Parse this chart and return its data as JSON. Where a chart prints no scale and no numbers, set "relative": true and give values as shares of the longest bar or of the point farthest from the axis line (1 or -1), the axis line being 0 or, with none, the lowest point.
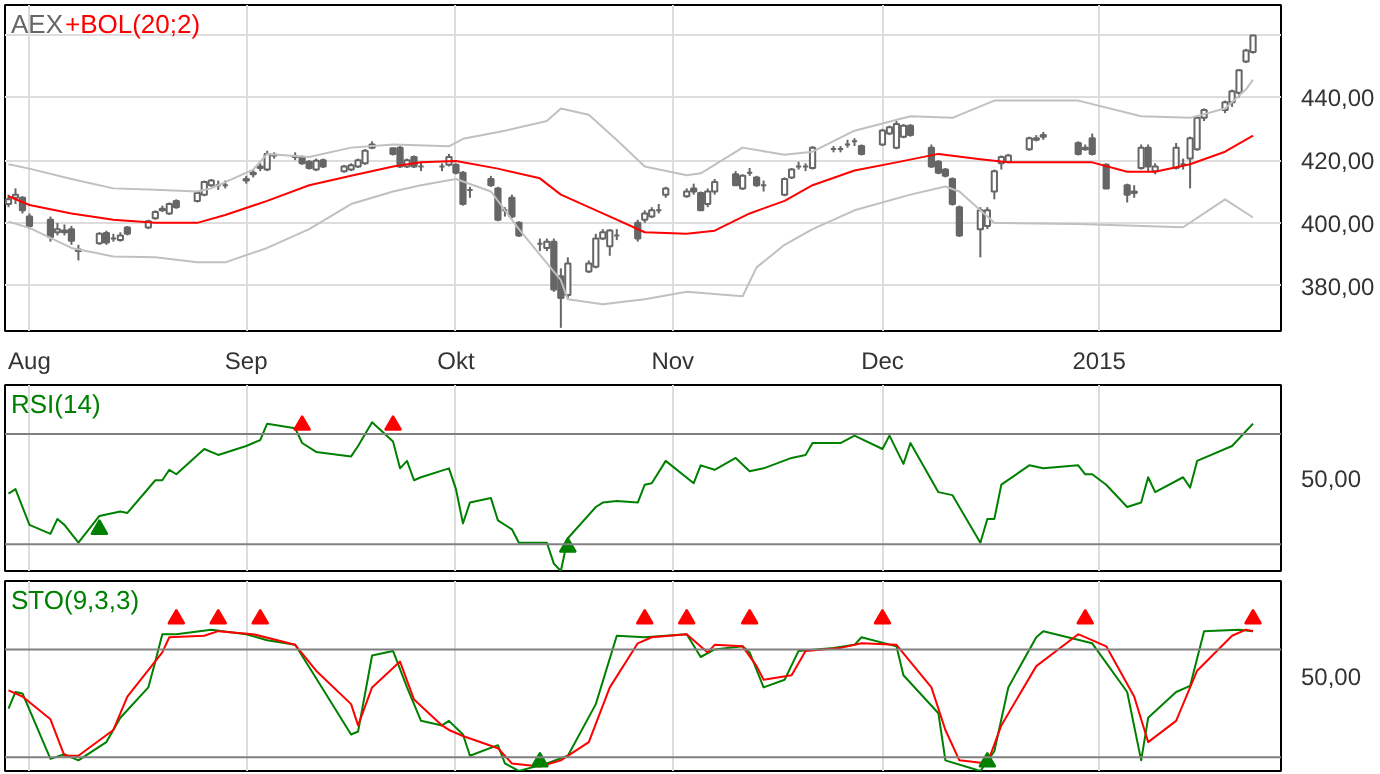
{
  "chart_data": [
    {
      "type": "candlestick",
      "legend": "top left",
      "grid": true,
      "x": [
        "2014-07-29",
        "2014-07-30",
        "2014-07-31",
        "2014-08-01",
        "2014-08-04",
        "2014-08-05",
        "2014-08-06",
        "2014-08-07",
        "2014-08-08",
        "2014-08-11",
        "2014-08-12",
        "2014-08-13",
        "2014-08-14",
        "2014-08-15",
        "2014-08-18",
        "2014-08-19",
        "2014-08-20",
        "2014-08-21",
        "2014-08-22",
        "2014-08-25",
        "2014-08-26",
        "2014-08-27",
        "2014-08-28",
        "2014-08-29",
        "2014-09-01",
        "2014-09-02",
        "2014-09-03",
        "2014-09-04",
        "2014-09-05",
        "2014-09-08",
        "2014-09-09",
        "2014-09-10",
        "2014-09-11",
        "2014-09-12",
        "2014-09-15",
        "2014-09-16",
        "2014-09-17",
        "2014-09-18",
        "2014-09-19",
        "2014-09-22",
        "2014-09-23",
        "2014-09-24",
        "2014-09-25",
        "2014-09-26",
        "2014-09-29",
        "2014-09-30",
        "2014-10-01",
        "2014-10-02",
        "2014-10-03",
        "2014-10-06",
        "2014-10-07",
        "2014-10-08",
        "2014-10-09",
        "2014-10-10",
        "2014-10-13",
        "2014-10-14",
        "2014-10-15",
        "2014-10-16",
        "2014-10-17",
        "2014-10-20",
        "2014-10-21",
        "2014-10-22",
        "2014-10-23",
        "2014-10-24",
        "2014-10-27",
        "2014-10-28",
        "2014-10-29",
        "2014-10-30",
        "2014-10-31",
        "2014-11-03",
        "2014-11-04",
        "2014-11-05",
        "2014-11-06",
        "2014-11-07",
        "2014-11-10",
        "2014-11-11",
        "2014-11-12",
        "2014-11-13",
        "2014-11-14",
        "2014-11-17",
        "2014-11-18",
        "2014-11-19",
        "2014-11-20",
        "2014-11-21",
        "2014-11-24",
        "2014-11-25",
        "2014-11-26",
        "2014-11-27",
        "2014-11-28",
        "2014-12-01",
        "2014-12-02",
        "2014-12-03",
        "2014-12-04",
        "2014-12-05",
        "2014-12-08",
        "2014-12-09",
        "2014-12-10",
        "2014-12-11",
        "2014-12-12",
        "2014-12-15",
        "2014-12-16",
        "2014-12-17",
        "2014-12-18",
        "2014-12-19",
        "2014-12-22",
        "2014-12-23",
        "2014-12-24",
        "2014-12-29",
        "2014-12-30",
        "2014-12-31",
        "2015-01-02",
        "2015-01-05",
        "2015-01-06",
        "2015-01-07",
        "2015-01-08",
        "2015-01-09",
        "2015-01-12",
        "2015-01-13",
        "2015-01-14",
        "2015-01-15",
        "2015-01-16",
        "2015-01-19",
        "2015-01-20",
        "2015-01-21",
        "2015-01-22",
        "2015-01-23"
      ],
      "series": [
        {
          "name": "AEX",
          "type": "candlestick",
          "color": "#666666",
          "ohlc": [
            [
              406,
              409,
              405,
              407.5
            ],
            [
              408,
              411,
              406,
              409
            ],
            [
              408,
              408.5,
              403,
              404
            ],
            [
              402,
              403,
              398,
              399
            ],
            [
              401,
              402,
              394,
              395.5
            ],
            [
              397,
              400,
              396,
              398
            ],
            [
              397,
              399.5,
              396,
              397.6
            ],
            [
              398,
              399,
              393,
              394.3
            ],
            [
              391.5,
              393,
              388,
              391
            ],
            [
              393.5,
              397,
              393,
              396.5
            ],
            [
              396.8,
              397.5,
              393,
              393.7
            ],
            [
              395,
              396.5,
              394,
              395
            ],
            [
              394.5,
              397,
              394,
              396
            ],
            [
              398.5,
              399,
              396,
              396.5
            ],
            [
              398.5,
              401,
              398,
              400.5
            ],
            [
              401.5,
              404,
              401,
              403.5
            ],
            [
              404,
              405.5,
              403.5,
              404.5
            ],
            [
              403,
              406.5,
              402.5,
              406
            ],
            [
              407,
              407.5,
              404.5,
              405
            ],
            [
              407,
              410,
              406.5,
              409.5
            ],
            [
              409,
              413.5,
              408.5,
              413
            ],
            [
              412,
              414,
              411.5,
              413.5
            ],
            [
              412,
              413.5,
              410.5,
              412
            ],
            [
              412,
              413.5,
              411,
              412
            ],
            [
              413.5,
              415,
              412.5,
              414
            ],
            [
              415.5,
              417,
              414.5,
              416
            ],
            [
              417.5,
              419,
              416.5,
              418
            ],
            [
              417,
              423,
              416.5,
              422
            ],
            [
              421.5,
              422.5,
              420.5,
              421.7
            ],
            [
              421,
              422.5,
              420,
              421.3
            ],
            [
              421,
              421.5,
              418.5,
              419
            ],
            [
              419.5,
              420,
              417,
              417.5
            ],
            [
              417,
              420.5,
              416.5,
              419.8
            ],
            [
              420,
              420.5,
              417.5,
              418
            ],
            [
              416.5,
              418.5,
              416,
              418
            ],
            [
              417,
              419,
              416.5,
              418.4
            ],
            [
              418,
              420.5,
              417.5,
              420
            ],
            [
              419,
              423.5,
              418.5,
              423
            ],
            [
              424,
              426,
              423.5,
              425
            ],
            [
              423.8,
              424,
              421.5,
              422
            ],
            [
              424,
              424.5,
              417.5,
              418
            ],
            [
              418,
              420.5,
              417.5,
              420
            ],
            [
              421,
              421.5,
              417.5,
              418
            ],
            [
              418,
              419.5,
              416.5,
              418
            ],
            [
              418,
              419,
              416.5,
              418
            ],
            [
              418.5,
              422,
              418,
              421
            ],
            [
              418.5,
              419,
              415.5,
              416
            ],
            [
              416,
              416.5,
              405.5,
              406
            ],
            [
              410.5,
              411.5,
              408,
              410.5
            ],
            [
              414,
              415,
              411.5,
              412
            ],
            [
              411,
              411.5,
              400.5,
              401
            ],
            [
              404,
              405,
              402,
              404
            ],
            [
              408,
              409,
              401.5,
              402
            ],
            [
              400,
              400.5,
              395.5,
              396
            ],
            [
              393.3,
              395,
              391,
              393.3
            ],
            [
              392,
              395,
              391,
              394
            ],
            [
              394,
              395,
              378,
              378.7
            ],
            [
              383,
              385.5,
              366.5,
              376
            ],
            [
              377,
              389,
              376,
              387
            ],
            [
              384.5,
              388,
              384,
              387
            ],
            [
              386,
              396.5,
              385.5,
              395
            ],
            [
              395,
              398,
              394.5,
              397
            ],
            [
              392.5,
              398,
              389.5,
              397.6
            ],
            [
              396,
              398,
              394.5,
              396
            ],
            [
              400,
              401,
              394,
              395
            ],
            [
              401,
              404,
              400,
              403
            ],
            [
              402,
              405,
              401.5,
              404
            ],
            [
              404,
              406,
              403,
              404
            ],
            [
              409,
              411.5,
              408,
              411
            ],
            [
              408.5,
              411,
              408,
              410
            ],
            [
              411,
              412.5,
              409,
              410
            ],
            [
              409.5,
              410,
              404,
              404
            ],
            [
              406,
              411,
              405,
              410
            ],
            [
              410,
              414,
              409,
              413
            ],
            [
              415.5,
              416.5,
              412,
              412
            ],
            [
              411,
              415.5,
              410.5,
              415
            ],
            [
              416,
              417.5,
              415,
              416
            ],
            [
              414.5,
              415,
              411.5,
              412
            ],
            [
              412,
              413.5,
              410,
              412
            ],
            [
              409,
              414.5,
              408.5,
              414
            ],
            [
              414.5,
              417.5,
              414,
              417
            ],
            [
              418,
              419.5,
              417,
              418
            ],
            [
              418,
              419,
              416.5,
              418
            ],
            [
              417.5,
              424.5,
              417,
              424
            ],
            [
              423.6,
              424.5,
              422.5,
              423.6
            ],
            [
              423.6,
              424.5,
              422.5,
              423.6
            ],
            [
              425,
              426.5,
              424,
              425
            ],
            [
              426,
              427,
              424.5,
              426
            ],
            [
              424.5,
              425,
              421.5,
              422
            ],
            [
              425,
              430,
              424.5,
              429.5
            ],
            [
              428.5,
              431,
              428,
              430.5
            ],
            [
              424,
              432.5,
              423.5,
              431.5
            ],
            [
              427.5,
              431.5,
              427,
              431
            ],
            [
              431,
              431.5,
              427.5,
              428
            ],
            [
              424,
              425,
              417.5,
              418
            ],
            [
              419.5,
              420,
              415.5,
              416
            ],
            [
              417,
              417.5,
              414.5,
              415
            ],
            [
              414,
              414.5,
              405.5,
              406
            ],
            [
              405,
              405.5,
              395.5,
              396
            ],
            [
              398,
              405,
              389,
              404
            ],
            [
              399,
              405,
              398,
              404
            ],
            [
              410,
              417,
              407.5,
              416.5
            ],
            [
              419,
              421.5,
              417,
              421
            ],
            [
              419.5,
              422,
              419,
              421.5
            ],
            [
              423.5,
              427.5,
              423,
              427
            ],
            [
              426.5,
              428,
              426,
              427
            ],
            [
              427.5,
              429,
              426.5,
              428
            ],
            [
              425.5,
              426,
              421.5,
              422
            ],
            [
              423.5,
              425,
              423,
              424
            ],
            [
              427,
              428.5,
              421.5,
              422
            ],
            [
              418.5,
              419,
              411,
              411
            ],
            [
              412,
              412.5,
              406.5,
              409
            ],
            [
              409.5,
              412,
              408,
              410
            ],
            [
              417.5,
              425,
              417,
              424
            ],
            [
              424,
              425,
              416.5,
              418
            ],
            [
              416.5,
              419,
              415.5,
              418
            ],
            [
              417.5,
              425.5,
              417,
              424
            ],
            [
              418.7,
              420.5,
              417,
              418.7
            ],
            [
              420.5,
              427.5,
              411,
              427
            ],
            [
              423.5,
              434,
              423,
              433.5
            ],
            [
              433.5,
              436.5,
              432.5,
              436
            ],
            [
              436,
              439,
              435,
              438.5
            ],
            [
              438.5,
              442.5,
              437,
              442
            ],
            [
              441.5,
              449,
              440,
              448.7
            ],
            [
              451.5,
              455.5,
              451,
              455
            ],
            [
              454.5,
              460,
              454,
              459.8
            ]
          ]
        },
        {
          "name": "+BOL(20;2)",
          "type": "line",
          "color": "#ff0000",
          "x": [
            "2014-07-29",
            "2014-08-01",
            "2014-08-07",
            "2014-08-13",
            "2014-08-19",
            "2014-08-25",
            "2014-08-29",
            "2014-09-04",
            "2014-09-10",
            "2014-09-16",
            "2014-09-22",
            "2014-09-26",
            "2014-10-01",
            "2014-10-07",
            "2014-10-13",
            "2014-10-16",
            "2014-10-22",
            "2014-10-28",
            "2014-11-03",
            "2014-11-07",
            "2014-11-12",
            "2014-11-17",
            "2014-11-21",
            "2014-11-27",
            "2014-12-03",
            "2014-12-09",
            "2014-12-15",
            "2014-12-19",
            "2014-12-31",
            "2015-01-05",
            "2015-01-09",
            "2015-01-14",
            "2015-01-19",
            "2015-01-23"
          ],
          "values": [
            408.5,
            405.7,
            403,
            401,
            400,
            400,
            402.5,
            407,
            412,
            415,
            418,
            419.3,
            419.7,
            417.3,
            414.2,
            409,
            403,
            397,
            396.5,
            397.5,
            403,
            407,
            412,
            416.7,
            419.3,
            422,
            420.3,
            419.3,
            419.3,
            416.3,
            416.3,
            418.7,
            422.7,
            427.8
          ]
        },
        {
          "type": "line",
          "color": "#c0c0c0",
          "x": [
            "2014-07-29",
            "2014-08-01",
            "2014-08-07",
            "2014-08-13",
            "2014-08-19",
            "2014-08-25",
            "2014-08-27",
            "2014-09-02",
            "2014-09-04",
            "2014-09-10",
            "2014-09-16",
            "2014-09-22",
            "2014-09-30",
            "2014-10-02",
            "2014-10-08",
            "2014-10-14",
            "2014-10-16",
            "2014-10-20",
            "2014-10-24",
            "2014-10-28",
            "2014-11-03",
            "2014-11-05",
            "2014-11-11",
            "2014-11-17",
            "2014-11-21",
            "2014-11-27",
            "2014-12-05",
            "2014-12-11",
            "2014-12-17",
            "2014-12-29",
            "2015-01-07",
            "2015-01-14",
            "2015-01-19",
            "2015-01-22",
            "2015-01-23"
          ],
          "values": [
            418.7,
            417.3,
            414,
            411,
            410.6,
            410,
            411,
            417,
            422,
            421,
            424,
            425,
            424.4,
            426.8,
            429.4,
            432.5,
            436.5,
            434.5,
            426.4,
            418,
            415.2,
            415.8,
            424,
            421.7,
            422.7,
            429.4,
            434,
            433.5,
            439,
            439,
            434,
            433.5,
            436.5,
            442.6,
            445.7
          ]
        },
        {
          "type": "line",
          "color": "#c0c0c0",
          "x": [
            "2014-07-29",
            "2014-08-01",
            "2014-08-07",
            "2014-08-13",
            "2014-08-19",
            "2014-08-25",
            "2014-08-29",
            "2014-09-04",
            "2014-09-10",
            "2014-09-16",
            "2014-09-22",
            "2014-09-26",
            "2014-10-01",
            "2014-10-06",
            "2014-10-10",
            "2014-10-16",
            "2014-10-17",
            "2014-10-22",
            "2014-10-28",
            "2014-11-03",
            "2014-11-11",
            "2014-11-13",
            "2014-11-17",
            "2014-11-21",
            "2014-11-27",
            "2014-12-05",
            "2014-12-10",
            "2014-12-12",
            "2014-12-17",
            "2014-12-29",
            "2015-01-13",
            "2015-01-19",
            "2015-01-23"
          ],
          "values": [
            400.4,
            398.4,
            392,
            389.3,
            389,
            387.4,
            387.4,
            392,
            398,
            406,
            410,
            412,
            414,
            410,
            398,
            381.7,
            375.6,
            374,
            375.6,
            378,
            376.6,
            385.8,
            393,
            398,
            404,
            409,
            411.6,
            410,
            400,
            399.6,
            398.6,
            407.5,
            401.7
          ]
        }
      ],
      "xlim": [
        "2014-07-28T12:00",
        "2015-01-27"
      ],
      "xticks": [
        {
          "value": "2014-08-01",
          "label": "Aug"
        },
        {
          "value": "2014-09-01",
          "label": "Sep"
        },
        {
          "value": "2014-10-01",
          "label": "Okt"
        },
        {
          "value": "2014-11-01",
          "label": "Nov"
        },
        {
          "value": "2014-12-01",
          "label": "Dec"
        },
        {
          "value": "2015-01-01",
          "label": "2015"
        }
      ],
      "ylim": [
        365.5,
        469.5
      ],
      "yticks": [
        {
          "value": 380,
          "label": "380,00"
        },
        {
          "value": 400,
          "label": "400,00"
        },
        {
          "value": 420,
          "label": "420,00"
        },
        {
          "value": 440,
          "label": "440,00"
        },
        {
          "value": 460,
          "label": null
        }
      ]
    },
    {
      "type": "line",
      "legend": "top left",
      "grid": "x",
      "tick_labels": false,
      "relative": true,
      "annotations": [
        "50,00"
      ],
      "series": [
        {
          "name": "RSI(14)",
          "color": "#008000",
          "x": [
            "2014-07-29",
            "2014-07-30",
            "2014-08-01",
            "2014-08-04",
            "2014-08-05",
            "2014-08-06",
            "2014-08-08",
            "2014-08-11",
            "2014-08-14",
            "2014-08-15",
            "2014-08-19",
            "2014-08-20",
            "2014-08-21",
            "2014-08-22",
            "2014-08-26",
            "2014-08-28",
            "2014-09-01",
            "2014-09-03",
            "2014-09-04",
            "2014-09-08",
            "2014-09-09",
            "2014-09-11",
            "2014-09-16",
            "2014-09-17",
            "2014-09-19",
            "2014-09-22",
            "2014-09-23",
            "2014-09-24",
            "2014-09-25",
            "2014-09-26",
            "2014-09-30",
            "2014-10-01",
            "2014-10-02",
            "2014-10-03",
            "2014-10-06",
            "2014-10-07",
            "2014-10-09",
            "2014-10-10",
            "2014-10-14",
            "2014-10-15",
            "2014-10-16",
            "2014-10-17",
            "2014-10-21",
            "2014-10-22",
            "2014-10-24",
            "2014-10-27",
            "2014-10-28",
            "2014-10-29",
            "2014-10-31",
            "2014-11-04",
            "2014-11-05",
            "2014-11-07",
            "2014-11-10",
            "2014-11-12",
            "2014-11-14",
            "2014-11-18",
            "2014-11-20",
            "2014-11-21",
            "2014-11-25",
            "2014-11-27",
            "2014-12-01",
            "2014-12-02",
            "2014-12-04",
            "2014-12-05",
            "2014-12-09",
            "2014-12-11",
            "2014-12-15",
            "2014-12-16",
            "2014-12-17",
            "2014-12-18",
            "2014-12-22",
            "2014-12-24",
            "2014-12-29",
            "2014-12-30",
            "2014-12-31",
            "2015-01-02",
            "2015-01-05",
            "2015-01-07",
            "2015-01-08",
            "2015-01-09",
            "2015-01-13",
            "2015-01-14",
            "2015-01-15",
            "2015-01-20",
            "2015-01-23"
          ],
          "values": [
            0.52,
            0.55,
            0.31,
            0.25,
            0.35,
            0.31,
            0.19,
            0.37,
            0.4,
            0.39,
            0.61,
            0.61,
            0.68,
            0.65,
            0.82,
            0.78,
            0.84,
            0.88,
            0.99,
            0.96,
            0.86,
            0.8,
            0.77,
            0.84,
            1,
            0.87,
            0.69,
            0.74,
            0.61,
            0.63,
            0.69,
            0.55,
            0.32,
            0.46,
            0.49,
            0.34,
            0.28,
            0.19,
            0.19,
            0.05,
            0,
            0.22,
            0.43,
            0.46,
            0.47,
            0.46,
            0.58,
            0.59,
            0.74,
            0.59,
            0.71,
            0.68,
            0.76,
            0.67,
            0.69,
            0.76,
            0.78,
            0.86,
            0.86,
            0.91,
            0.82,
            0.91,
            0.72,
            0.86,
            0.53,
            0.51,
            0.19,
            0.35,
            0.35,
            0.58,
            0.71,
            0.69,
            0.71,
            0.65,
            0.65,
            0.58,
            0.43,
            0.46,
            0.63,
            0.53,
            0.63,
            0.56,
            0.74,
            0.84,
            0.99
          ]
        },
        {
          "type": "scatter",
          "marker": "triangle",
          "color": "#ff0000",
          "x": [
            "2014-09-09",
            "2014-09-22"
          ],
          "values": [
            0.98,
            0.98
          ]
        },
        {
          "type": "scatter",
          "marker": "triangle",
          "color": "#008000",
          "x": [
            "2014-08-11",
            "2014-10-17"
          ],
          "values": [
            0.28,
            0.16
          ]
        }
      ],
      "xlim": [
        "2014-07-28T12:00",
        "2015-01-27"
      ],
      "xticks": [
        {
          "value": "2014-08-01",
          "label": null
        },
        {
          "value": "2014-09-01",
          "label": null
        },
        {
          "value": "2014-10-01",
          "label": null
        },
        {
          "value": "2014-11-01",
          "label": null
        },
        {
          "value": "2014-12-01",
          "label": null
        },
        {
          "value": "2015-01-01",
          "label": null
        }
      ],
      "ref_lines": [
        {
          "axis": "y",
          "value": 0.18,
          "color": "#808080"
        },
        {
          "axis": "y",
          "value": 0.92,
          "color": "#808080"
        }
      ]
    },
    {
      "type": "line",
      "legend": "top left",
      "grid": "x",
      "tick_labels": false,
      "relative": true,
      "annotations": [
        "50,00"
      ],
      "series": [
        {
          "name": "STO(9,3,3)",
          "color": "#008000",
          "x": [
            "2014-07-29",
            "2014-07-30",
            "2014-07-31",
            "2014-08-04",
            "2014-08-06",
            "2014-08-08",
            "2014-08-12",
            "2014-08-14",
            "2014-08-18",
            "2014-08-19",
            "2014-08-20",
            "2014-08-22",
            "2014-08-27",
            "2014-09-01",
            "2014-09-04",
            "2014-09-08",
            "2014-09-11",
            "2014-09-16",
            "2014-09-17",
            "2014-09-19",
            "2014-09-22",
            "2014-09-24",
            "2014-09-26",
            "2014-09-29",
            "2014-09-30",
            "2014-10-02",
            "2014-10-03",
            "2014-10-07",
            "2014-10-08",
            "2014-10-10",
            "2014-10-14",
            "2014-10-17",
            "2014-10-21",
            "2014-10-24",
            "2014-10-28",
            "2014-11-03",
            "2014-11-05",
            "2014-11-07",
            "2014-11-11",
            "2014-11-12",
            "2014-11-14",
            "2014-11-17",
            "2014-11-19",
            "2014-11-24",
            "2014-11-27",
            "2014-11-28",
            "2014-12-03",
            "2014-12-04",
            "2014-12-09",
            "2014-12-10",
            "2014-12-15",
            "2014-12-17",
            "2014-12-19",
            "2014-12-23",
            "2014-12-24",
            "2014-12-31",
            "2015-01-05",
            "2015-01-07",
            "2015-01-08",
            "2015-01-12",
            "2015-01-14",
            "2015-01-16",
            "2015-01-21",
            "2015-01-23"
          ],
          "values": [
            0.41,
            0.52,
            0.51,
            0.08,
            0.11,
            0.07,
            0.19,
            0.35,
            0.55,
            0.72,
            0.9,
            0.9,
            0.93,
            0.9,
            0.86,
            0.83,
            0.61,
            0.24,
            0.26,
            0.76,
            0.79,
            0.55,
            0.33,
            0.3,
            0.33,
            0.24,
            0.1,
            0.17,
            0.05,
            0,
            0.05,
            0.1,
            0.44,
            0.89,
            0.88,
            0.9,
            0.75,
            0.8,
            0.82,
            0.78,
            0.55,
            0.6,
            0.79,
            0.81,
            0.83,
            0.88,
            0.82,
            0.63,
            0.38,
            0.07,
            0,
            0.13,
            0.55,
            0.88,
            0.92,
            0.84,
            0.52,
            0.07,
            0.35,
            0.52,
            0.56,
            0.92,
            0.93,
            0.92
          ]
        },
        {
          "color": "#ff0000",
          "x": [
            "2014-07-29",
            "2014-07-31",
            "2014-08-04",
            "2014-08-06",
            "2014-08-08",
            "2014-08-13",
            "2014-08-15",
            "2014-08-20",
            "2014-08-21",
            "2014-08-26",
            "2014-08-28",
            "2014-09-02",
            "2014-09-08",
            "2014-09-11",
            "2014-09-16",
            "2014-09-17",
            "2014-09-19",
            "2014-09-23",
            "2014-09-25",
            "2014-09-29",
            "2014-09-30",
            "2014-10-02",
            "2014-10-07",
            "2014-10-09",
            "2014-10-13",
            "2014-10-16",
            "2014-10-20",
            "2014-10-23",
            "2014-10-27",
            "2014-10-29",
            "2014-11-03",
            "2014-11-06",
            "2014-11-07",
            "2014-11-11",
            "2014-11-13",
            "2014-11-14",
            "2014-11-18",
            "2014-11-20",
            "2014-11-25",
            "2014-11-28",
            "2014-12-03",
            "2014-12-08",
            "2014-12-10",
            "2014-12-12",
            "2014-12-16",
            "2014-12-18",
            "2014-12-23",
            "2014-12-29",
            "2015-01-02",
            "2015-01-06",
            "2015-01-08",
            "2015-01-12",
            "2015-01-15",
            "2015-01-20",
            "2015-01-22",
            "2015-01-23"
          ],
          "values": [
            0.53,
            0.49,
            0.34,
            0.1,
            0.1,
            0.27,
            0.49,
            0.78,
            0.88,
            0.89,
            0.92,
            0.9,
            0.83,
            0.66,
            0.44,
            0.3,
            0.55,
            0.72,
            0.47,
            0.3,
            0.27,
            0.23,
            0.15,
            0.05,
            0.03,
            0.07,
            0.19,
            0.55,
            0.84,
            0.88,
            0.9,
            0.78,
            0.83,
            0.82,
            0.69,
            0.6,
            0.63,
            0.79,
            0.81,
            0.84,
            0.83,
            0.55,
            0.27,
            0.07,
            0.05,
            0.3,
            0.69,
            0.9,
            0.82,
            0.49,
            0.19,
            0.33,
            0.66,
            0.89,
            0.93,
            0.92
          ]
        },
        {
          "type": "scatter",
          "marker": "triangle",
          "color": "#ff0000",
          "x": [
            "2014-08-22",
            "2014-08-28",
            "2014-09-03",
            "2014-10-28",
            "2014-11-03",
            "2014-11-12",
            "2014-12-01",
            "2014-12-30",
            "2015-01-23"
          ],
          "values": [
            1,
            1,
            1,
            1,
            1,
            1,
            1,
            1,
            1
          ]
        },
        {
          "type": "scatter",
          "marker": "triangle",
          "color": "#008000",
          "x": [
            "2014-10-13",
            "2014-12-16"
          ],
          "values": [
            0.06,
            0.06
          ]
        }
      ],
      "xlim": [
        "2014-07-28T12:00",
        "2015-01-27"
      ],
      "xticks": [
        {
          "value": "2014-08-01",
          "label": null
        },
        {
          "value": "2014-09-01",
          "label": null
        },
        {
          "value": "2014-10-01",
          "label": null
        },
        {
          "value": "2014-11-01",
          "label": null
        },
        {
          "value": "2014-12-01",
          "label": null
        },
        {
          "value": "2015-01-01",
          "label": null
        }
      ],
      "ref_lines": [
        {
          "axis": "y",
          "value": 0.09,
          "color": "#808080"
        },
        {
          "axis": "y",
          "value": 0.8,
          "color": "#808080"
        }
      ]
    }
  ]
}
